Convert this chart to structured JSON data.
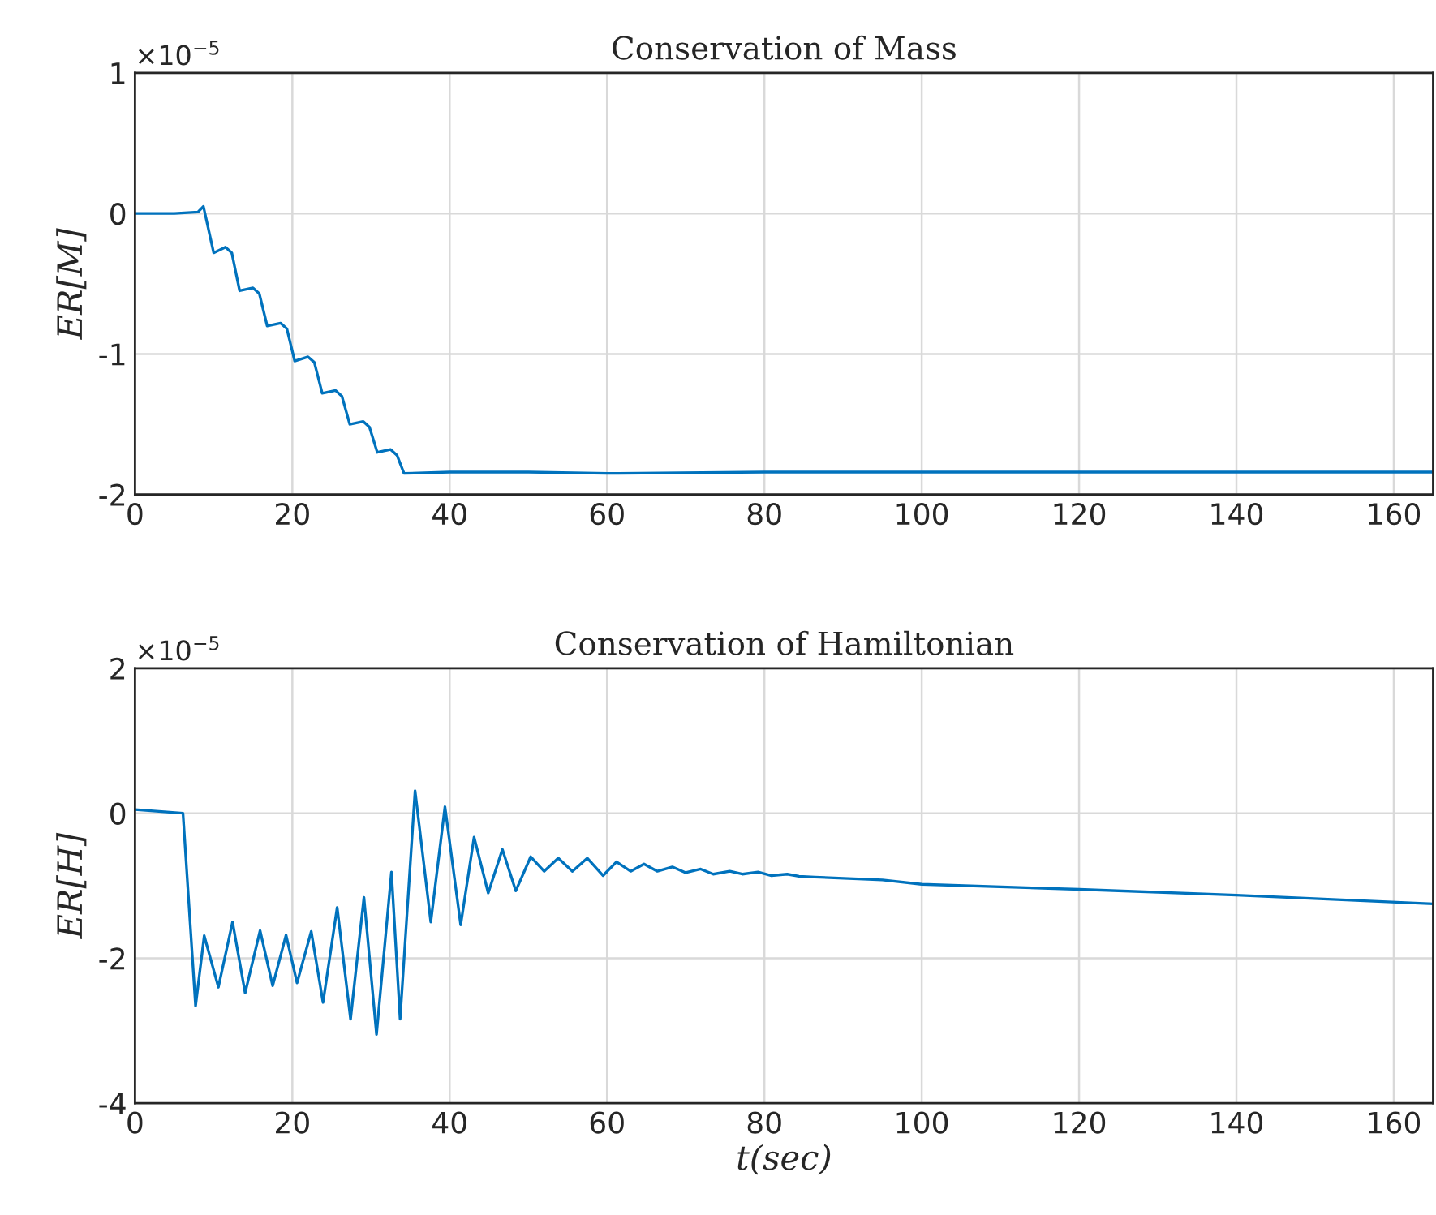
{
  "chart_data": [
    {
      "type": "line",
      "title": "Conservation of Mass",
      "ylabel": "ER[M]",
      "annotations": [
        "×10$^{−5}$"
      ],
      "grid": true,
      "xlim": [
        0,
        165
      ],
      "xticks": [
        0,
        20,
        40,
        60,
        80,
        100,
        120,
        140,
        160
      ],
      "ylim": [
        -2,
        1
      ],
      "yticks": [
        -2,
        -1,
        0,
        1
      ],
      "series": [
        {
          "color": "#0072bd",
          "x": [
            0,
            5,
            8,
            8.7,
            10,
            11.5,
            12.3,
            13.3,
            15,
            15.8,
            16.8,
            18.5,
            19.3,
            20.3,
            22,
            22.8,
            23.8,
            25.5,
            26.3,
            27.3,
            29,
            29.8,
            30.8,
            32.5,
            33.3,
            34.2,
            40,
            50,
            60,
            80,
            120,
            165
          ],
          "values": [
            0,
            0,
            0.01,
            0.05,
            -0.28,
            -0.24,
            -0.28,
            -0.55,
            -0.53,
            -0.57,
            -0.8,
            -0.78,
            -0.82,
            -1.05,
            -1.02,
            -1.06,
            -1.28,
            -1.26,
            -1.3,
            -1.5,
            -1.48,
            -1.52,
            -1.7,
            -1.68,
            -1.72,
            -1.85,
            -1.84,
            -1.84,
            -1.85,
            -1.84,
            -1.84,
            -1.84
          ]
        }
      ]
    },
    {
      "type": "line",
      "title": "Conservation of Hamiltonian",
      "ylabel": "ER[H]",
      "xlabel": "t(sec)",
      "annotations": [
        "×10$^{−5}$"
      ],
      "grid": true,
      "xlim": [
        0,
        165
      ],
      "xticks": [
        0,
        20,
        40,
        60,
        80,
        100,
        120,
        140,
        160
      ],
      "ylim": [
        -4,
        2
      ],
      "yticks": [
        -4,
        -2,
        0,
        2
      ],
      "series": [
        {
          "color": "#0072bd",
          "x": [
            0,
            6.1,
            7.7,
            8.8,
            10.6,
            12.4,
            14.0,
            15.9,
            17.5,
            19.2,
            20.6,
            22.4,
            23.9,
            25.7,
            27.4,
            29.1,
            30.7,
            32.6,
            33.7,
            35.6,
            37.6,
            39.4,
            41.4,
            43.1,
            44.9,
            46.7,
            48.4,
            50.3,
            52.0,
            53.8,
            55.6,
            57.5,
            59.5,
            61.2,
            63.0,
            64.7,
            66.4,
            68.3,
            70.0,
            71.9,
            73.5,
            75.6,
            77.2,
            79.2,
            80.9,
            82.9,
            84.4,
            86.4,
            95,
            100,
            120,
            140,
            165
          ],
          "values": [
            0.05,
            0,
            -2.66,
            -1.69,
            -2.4,
            -1.5,
            -2.48,
            -1.62,
            -2.38,
            -1.68,
            -2.34,
            -1.63,
            -2.61,
            -1.3,
            -2.84,
            -1.16,
            -3.05,
            -0.81,
            -2.84,
            0.31,
            -1.5,
            0.09,
            -1.54,
            -0.33,
            -1.1,
            -0.5,
            -1.07,
            -0.6,
            -0.8,
            -0.62,
            -0.8,
            -0.62,
            -0.86,
            -0.67,
            -0.8,
            -0.7,
            -0.8,
            -0.74,
            -0.82,
            -0.77,
            -0.84,
            -0.8,
            -0.84,
            -0.81,
            -0.86,
            -0.84,
            -0.87,
            -0.88,
            -0.92,
            -0.98,
            -1.05,
            -1.13,
            -1.25
          ]
        }
      ]
    }
  ]
}
